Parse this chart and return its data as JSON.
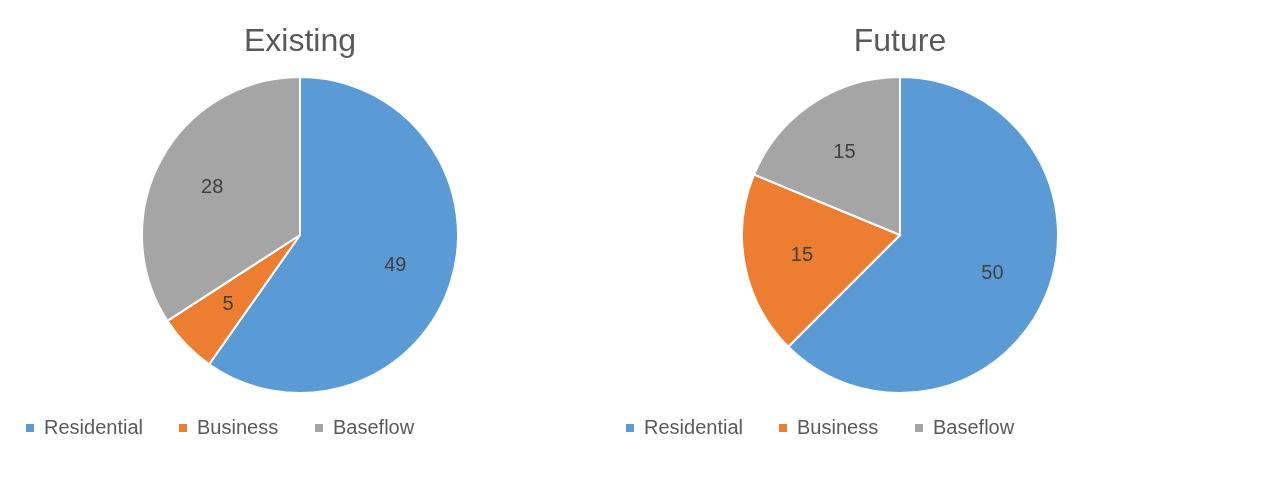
{
  "chart_data": [
    {
      "type": "pie",
      "title": "Existing",
      "categories": [
        "Residential",
        "Business",
        "Baseflow"
      ],
      "values": [
        49,
        5,
        28
      ],
      "colors": [
        "#5b9bd5",
        "#ed7d31",
        "#a5a5a5"
      ],
      "data_labels": true,
      "legend": "bottom"
    },
    {
      "type": "pie",
      "title": "Future",
      "categories": [
        "Residential",
        "Business",
        "Baseflow"
      ],
      "values": [
        50,
        15,
        15
      ],
      "colors": [
        "#5b9bd5",
        "#ed7d31",
        "#a5a5a5"
      ],
      "data_labels": true,
      "legend": "bottom"
    }
  ]
}
